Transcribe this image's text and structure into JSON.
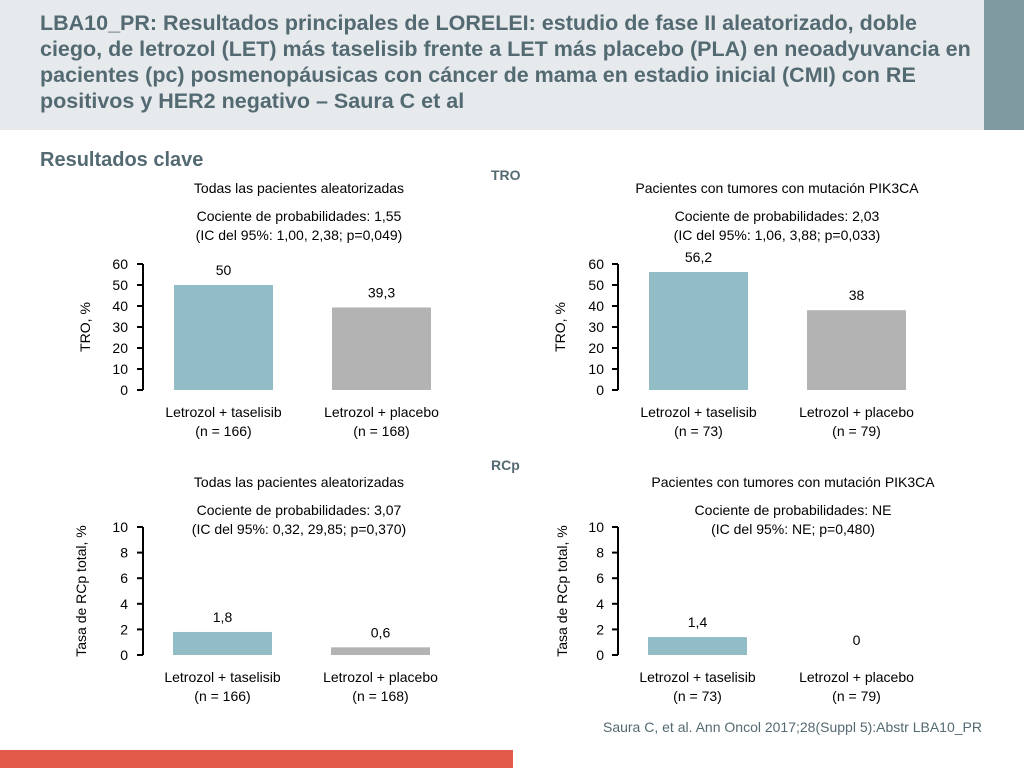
{
  "title": "LBA10_PR: Resultados principales de LORELEI: estudio de fase II aleatorizado, doble ciego, de letrozol (LET) más taselisib frente a LET más placebo (PLA) en neoadyuvancia en pacientes (pc) posmenopáusicas con cáncer de mama en estadio inicial (CMI) con RE positivos y HER2 negativo – Saura C et al",
  "subtitle": "Resultados clave",
  "sections": {
    "tro": "TRO",
    "rcp": "RCp"
  },
  "footnote": "Saura C, et al. Ann Oncol 2017;28(Suppl 5):Abstr LBA10_PR",
  "colors": {
    "taselisib": "#92bdc7",
    "placebo": "#b3b3b3",
    "title": "#546a72",
    "accent": "#7f9aa1",
    "bottom_bar": "#e35a4a"
  },
  "chart_data": [
    {
      "type": "bar",
      "title": "Todas las pacientes aleatorizadas",
      "annotation": [
        "Cociente de probabilidades: 1,55",
        "(IC del 95%: 1,00, 2,38; p=0,049)"
      ],
      "ylabel": "TRO, %",
      "ylim": [
        0,
        60
      ],
      "yticks": [
        0,
        10,
        20,
        30,
        40,
        50,
        60
      ],
      "categories": [
        [
          "Letrozol + taselisib",
          "(n = 166)"
        ],
        [
          "Letrozol + placebo",
          "(n = 168)"
        ]
      ],
      "values": [
        50,
        39.3
      ],
      "value_labels": [
        "50",
        "39,3"
      ]
    },
    {
      "type": "bar",
      "title": "Pacientes con tumores con mutación PIK3CA",
      "annotation": [
        "Cociente de probabilidades: 2,03",
        "(IC del 95%: 1,06, 3,88; p=0,033)"
      ],
      "ylabel": "TRO, %",
      "ylim": [
        0,
        60
      ],
      "yticks": [
        0,
        10,
        20,
        30,
        40,
        50,
        60
      ],
      "categories": [
        [
          "Letrozol + taselisib",
          "(n = 73)"
        ],
        [
          "Letrozol + placebo",
          "(n = 79)"
        ]
      ],
      "values": [
        56.2,
        38
      ],
      "value_labels": [
        "56,2",
        "38"
      ]
    },
    {
      "type": "bar",
      "title": "Todas las pacientes aleatorizadas",
      "annotation": [
        "Cociente de probabilidades: 3,07",
        "(IC del 95%: 0,32, 29,85; p=0,370)"
      ],
      "ylabel": "Tasa de RCp total, %",
      "ylim": [
        0,
        10
      ],
      "yticks": [
        0,
        2,
        4,
        6,
        8,
        10
      ],
      "categories": [
        [
          "Letrozol + taselisib",
          "(n = 166)"
        ],
        [
          "Letrozol + placebo",
          "(n = 168)"
        ]
      ],
      "values": [
        1.8,
        0.6
      ],
      "value_labels": [
        "1,8",
        "0,6"
      ]
    },
    {
      "type": "bar",
      "title": "Pacientes con tumores con mutación PIK3CA",
      "annotation": [
        "Cociente de probabilidades: NE",
        "(IC del 95%: NE; p=0,480)"
      ],
      "ylabel": "Tasa de RCp total, %",
      "ylim": [
        0,
        10
      ],
      "yticks": [
        0,
        2,
        4,
        6,
        8,
        10
      ],
      "categories": [
        [
          "Letrozol + taselisib",
          "(n = 73)"
        ],
        [
          "Letrozol + placebo",
          "(n = 79)"
        ]
      ],
      "values": [
        1.4,
        0
      ],
      "value_labels": [
        "1,4",
        "0"
      ]
    }
  ]
}
